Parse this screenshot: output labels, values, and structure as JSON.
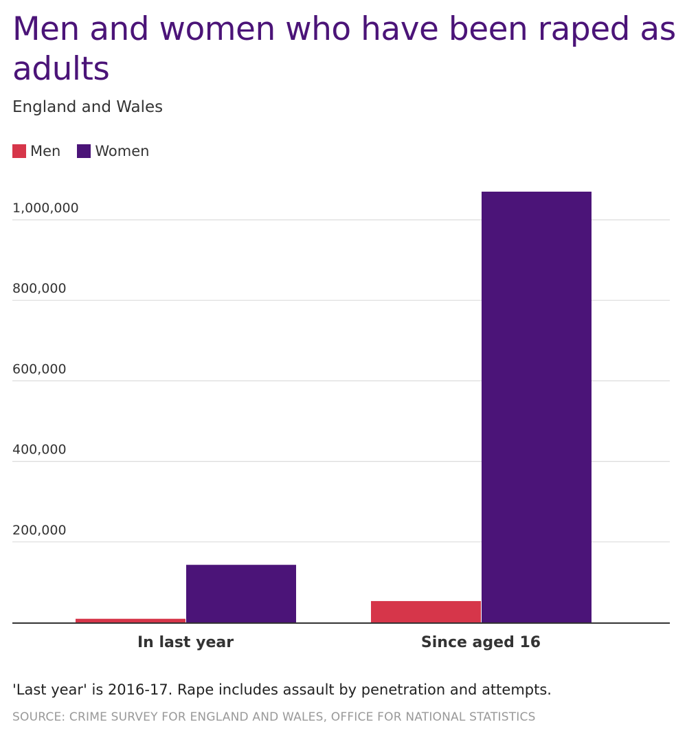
{
  "chart_data": {
    "type": "bar",
    "title": "Men and women who have been raped as adults",
    "subtitle": "England and Wales",
    "categories": [
      "In last year",
      "Since aged 16"
    ],
    "series": [
      {
        "name": "Men",
        "color": "#d6364a",
        "values": [
          9000,
          53000
        ]
      },
      {
        "name": "Women",
        "color": "#4b1478",
        "values": [
          143000,
          1070000
        ]
      }
    ],
    "yticks": [
      200000,
      400000,
      600000,
      800000,
      1000000
    ],
    "ytick_labels": [
      "200,000",
      "400,000",
      "600,000",
      "800,000",
      "1,000,000"
    ],
    "ylim": [
      0,
      1070000
    ],
    "grid": true,
    "legend": "top-left",
    "note": "'Last year' is 2016-17. Rape includes assault by penetration and attempts.",
    "source": "SOURCE: CRIME SURVEY FOR ENGLAND AND WALES, OFFICE FOR NATIONAL STATISTICS"
  }
}
